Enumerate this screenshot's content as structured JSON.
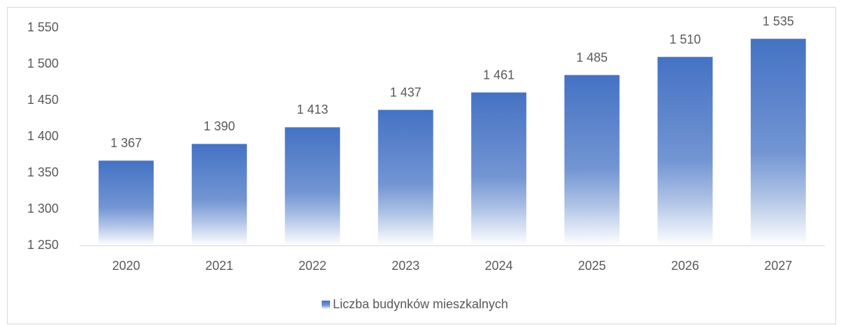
{
  "chart_data": {
    "type": "bar",
    "categories": [
      "2020",
      "2021",
      "2022",
      "2023",
      "2024",
      "2025",
      "2026",
      "2027"
    ],
    "series": [
      {
        "name": "Liczba budynków mieszkalnych",
        "color": "#4472c4",
        "values": [
          1367,
          1390,
          1413,
          1437,
          1461,
          1485,
          1510,
          1535
        ],
        "value_labels": [
          "1 367",
          "1 390",
          "1 413",
          "1 437",
          "1 461",
          "1 485",
          "1 510",
          "1 535"
        ]
      }
    ],
    "ylim": [
      1250,
      1550
    ],
    "yticks": [
      {
        "value": 1250,
        "label": "1 250"
      },
      {
        "value": 1300,
        "label": "1 300"
      },
      {
        "value": 1350,
        "label": "1 350"
      },
      {
        "value": 1400,
        "label": "1 400"
      },
      {
        "value": 1450,
        "label": "1 450"
      },
      {
        "value": 1500,
        "label": "1 500"
      },
      {
        "value": 1550,
        "label": "1 550"
      }
    ],
    "grid": false,
    "legend": "bottom"
  }
}
